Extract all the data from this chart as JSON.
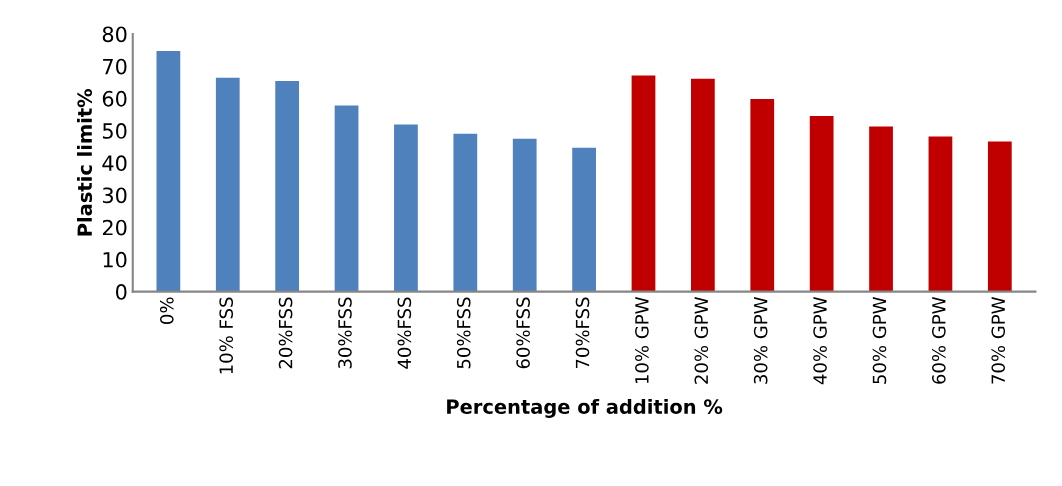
{
  "chart_data": {
    "type": "bar",
    "xlabel": "Percentage of addition %",
    "ylabel": "Plastic limit%",
    "categories": [
      "0%",
      "10% FSS",
      "20%FSS",
      "30%FSS",
      "40%FSS",
      "50%FSS",
      "60%FSS",
      "70%FSS",
      "10% GPW",
      "20% GPW",
      "30% GPW",
      "40% GPW",
      "50% GPW",
      "60% GPW",
      "70% GPW"
    ],
    "values": [
      74.7,
      66.4,
      65.4,
      57.8,
      51.9,
      49.0,
      47.5,
      44.7,
      67.1,
      66.1,
      59.8,
      54.5,
      51.3,
      48.2,
      46.6
    ],
    "colors": [
      "#4f81bd",
      "#4f81bd",
      "#4f81bd",
      "#4f81bd",
      "#4f81bd",
      "#4f81bd",
      "#4f81bd",
      "#4f81bd",
      "#c00000",
      "#c00000",
      "#c00000",
      "#c00000",
      "#c00000",
      "#c00000",
      "#c00000"
    ],
    "ylim": [
      0,
      80
    ],
    "yticks": [
      0,
      10,
      20,
      30,
      40,
      50,
      60,
      70,
      80
    ],
    "grid": false,
    "legend": false
  }
}
